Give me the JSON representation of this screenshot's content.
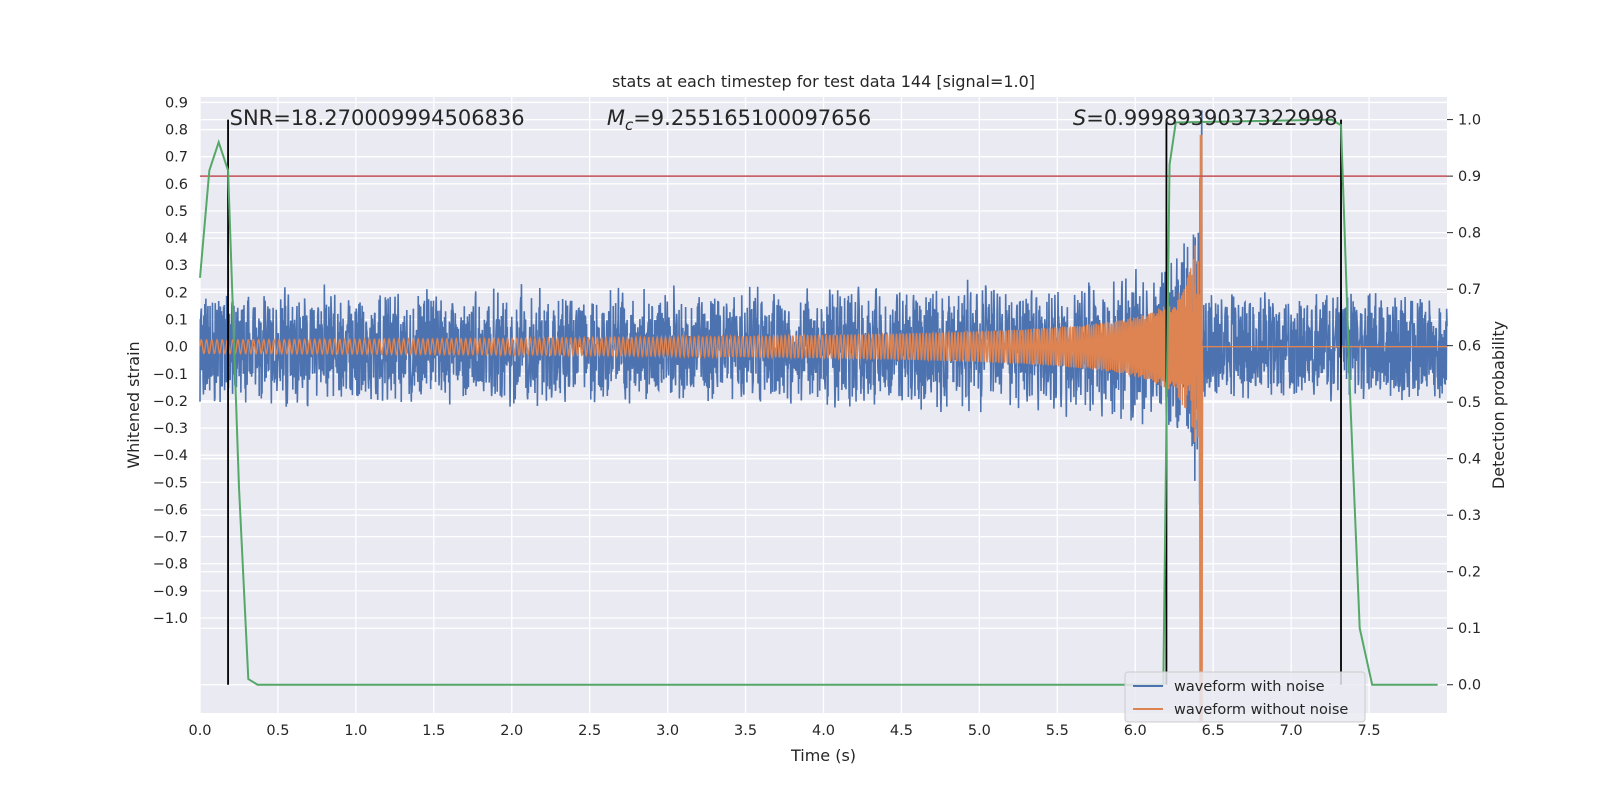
{
  "chart_data": {
    "type": "line",
    "title": "stats at each timestep for test data 144 [signal=1.0]",
    "xlabel": "Time (s)",
    "ylabel": "Whitened strain",
    "y2label": "Detection probability",
    "xlim": [
      0.0,
      8.0
    ],
    "ylim": [
      -1.35,
      0.92
    ],
    "y2lim": [
      -0.05,
      1.04
    ],
    "x_ticks": [
      "0.0",
      "0.5",
      "1.0",
      "1.5",
      "2.0",
      "2.5",
      "3.0",
      "3.5",
      "4.0",
      "4.5",
      "5.0",
      "5.5",
      "6.0",
      "6.5",
      "7.0",
      "7.5"
    ],
    "y_ticks": [
      "0.9",
      "0.8",
      "0.7",
      "0.6",
      "0.5",
      "0.4",
      "0.3",
      "0.2",
      "0.1",
      "0.0",
      "−0.1",
      "−0.2",
      "−0.3",
      "−0.4",
      "−0.5",
      "−0.6",
      "−0.7",
      "−0.8",
      "−0.9",
      "−1.0"
    ],
    "y2_ticks": [
      "1.0",
      "0.9",
      "0.8",
      "0.7",
      "0.6",
      "0.5",
      "0.4",
      "0.3",
      "0.2",
      "0.1",
      "0.0"
    ],
    "annotations": {
      "snr": "SNR=18.270009994506836",
      "mc_symbol": "M",
      "mc_sub": "c",
      "mc_value": "=9.255165100097656",
      "s_symbol": "S",
      "s_value": "=0.9998939037322998"
    },
    "series": [
      {
        "name": "waveform with noise",
        "color": "#4c72b0",
        "axis": "left",
        "noise_amplitude": 0.19,
        "merger_time": 6.43
      },
      {
        "name": "waveform without noise",
        "color": "#dd8452",
        "axis": "left",
        "merger_time": 6.43,
        "peak_amplitude": 0.78
      },
      {
        "name": "detection probability",
        "color": "#55a868",
        "axis": "right",
        "x": [
          0.0,
          0.06,
          0.12,
          0.18,
          0.25,
          0.31,
          0.37,
          6.18,
          6.22,
          6.26,
          7.26,
          7.32,
          7.38,
          7.44,
          7.52,
          7.94
        ],
        "y": [
          0.72,
          0.91,
          0.96,
          0.91,
          0.35,
          0.01,
          0.0,
          0.0,
          0.92,
          0.995,
          1.0,
          0.99,
          0.5,
          0.1,
          0.0,
          0.0
        ]
      }
    ],
    "threshold": {
      "value": 0.9,
      "axis": "right",
      "color": "#c44e52"
    },
    "vertical_lines": [
      0.18,
      6.2,
      7.32
    ],
    "legend": {
      "position": "bottom-right",
      "entries": [
        "waveform with noise",
        "waveform without noise"
      ]
    },
    "colors": {
      "background": "#eaeaf2",
      "grid": "#ffffff",
      "text": "#262626",
      "vline": "#000000"
    }
  }
}
